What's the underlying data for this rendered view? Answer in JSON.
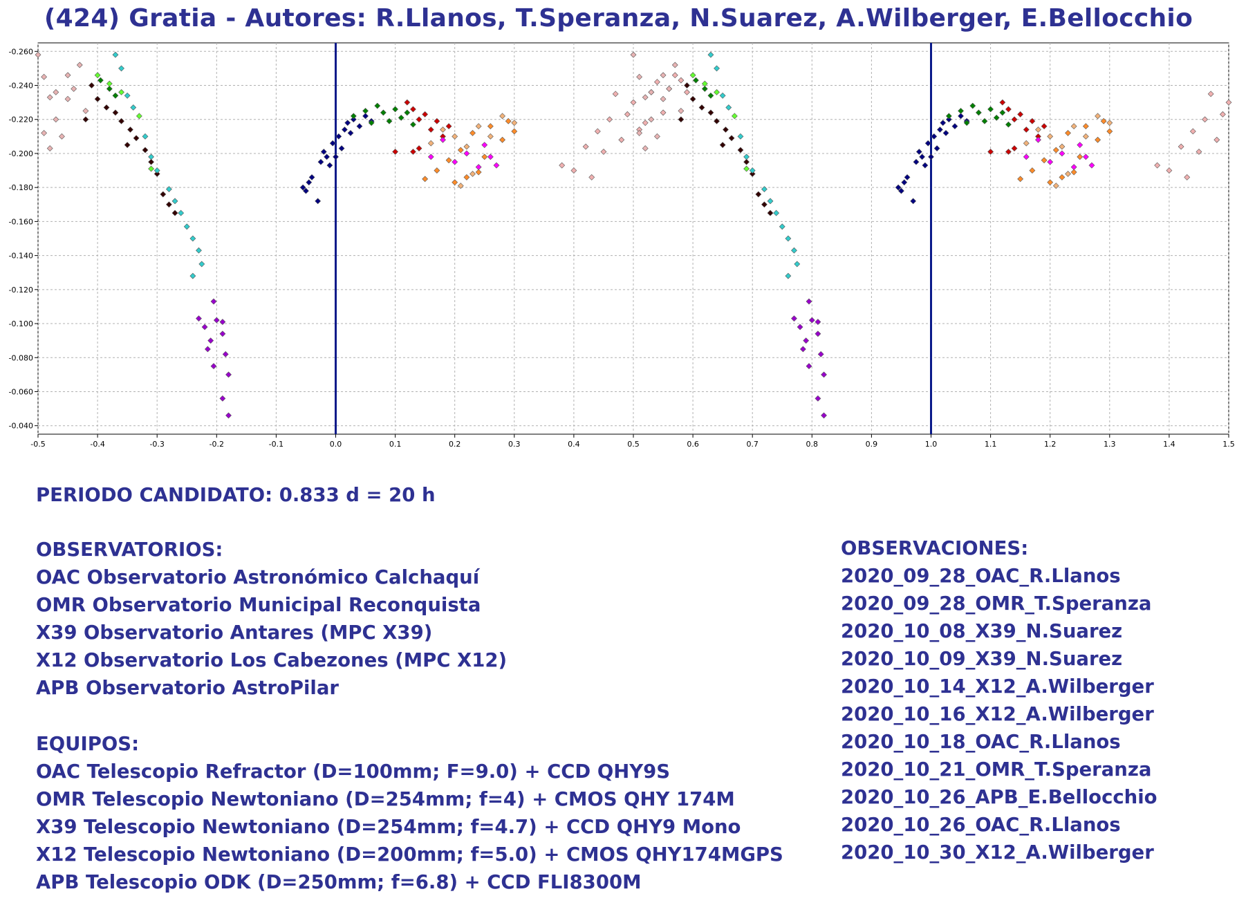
{
  "title": "(424) Gratia - Autores: R.Llanos, T.Speranza, N.Suarez, A.Wilberger, E.Bellocchio",
  "chart_data": {
    "type": "scatter",
    "title": "(424) Gratia - Autores: R.Llanos, T.Speranza, N.Suarez, A.Wilberger, E.Bellocchio",
    "xlabel": "",
    "ylabel": "",
    "xlim": [
      -0.5,
      1.5
    ],
    "ylim": [
      -0.035,
      -0.265
    ],
    "y_axis_reversed": true,
    "grid": true,
    "xticks": [
      "-0.5",
      "-0.4",
      "-0.3",
      "-0.2",
      "-0.1",
      "0.0",
      "0.1",
      "0.2",
      "0.3",
      "0.4",
      "0.5",
      "0.6",
      "0.7",
      "0.8",
      "0.9",
      "1.0",
      "1.1",
      "1.2",
      "1.3",
      "1.4",
      "1.5"
    ],
    "yticks": [
      "-0.260",
      "-0.240",
      "-0.220",
      "-0.200",
      "-0.180",
      "-0.160",
      "-0.140",
      "-0.120",
      "-0.100",
      "-0.080",
      "-0.060",
      "-0.040"
    ],
    "vertical_lines": [
      0.0,
      1.0
    ],
    "vertical_line_color": "#0a1a8a",
    "phase_repeat": 1.0,
    "series": [
      {
        "color": "#000080",
        "points": [
          [
            -0.055,
            -0.18
          ],
          [
            -0.05,
            -0.178
          ],
          [
            -0.045,
            -0.183
          ],
          [
            -0.04,
            -0.186
          ],
          [
            -0.03,
            -0.172
          ],
          [
            -0.025,
            -0.195
          ],
          [
            -0.02,
            -0.201
          ],
          [
            -0.015,
            -0.198
          ],
          [
            -0.01,
            -0.193
          ],
          [
            -0.005,
            -0.206
          ],
          [
            0.0,
            -0.198
          ],
          [
            0.005,
            -0.21
          ],
          [
            0.01,
            -0.203
          ],
          [
            0.015,
            -0.214
          ],
          [
            0.02,
            -0.218
          ],
          [
            0.025,
            -0.212
          ],
          [
            0.03,
            -0.22
          ],
          [
            0.04,
            -0.216
          ],
          [
            0.05,
            -0.222
          ],
          [
            0.06,
            -0.219
          ]
        ]
      },
      {
        "color": "#008000",
        "points": [
          [
            0.03,
            -0.222
          ],
          [
            0.05,
            -0.225
          ],
          [
            0.06,
            -0.218
          ],
          [
            0.07,
            -0.228
          ],
          [
            0.08,
            -0.224
          ],
          [
            0.09,
            -0.219
          ],
          [
            0.1,
            -0.226
          ],
          [
            0.11,
            -0.221
          ],
          [
            0.12,
            -0.224
          ],
          [
            0.13,
            -0.217
          ],
          [
            -0.395,
            -0.243
          ],
          [
            -0.38,
            -0.238
          ],
          [
            -0.37,
            -0.234
          ]
        ]
      },
      {
        "color": "#cc0000",
        "points": [
          [
            0.12,
            -0.23
          ],
          [
            0.13,
            -0.226
          ],
          [
            0.14,
            -0.22
          ],
          [
            0.15,
            -0.223
          ],
          [
            0.16,
            -0.214
          ],
          [
            0.17,
            -0.219
          ],
          [
            0.18,
            -0.21
          ],
          [
            0.19,
            -0.216
          ],
          [
            0.13,
            -0.201
          ],
          [
            0.14,
            -0.203
          ],
          [
            0.1,
            -0.201
          ]
        ]
      },
      {
        "color": "#ff00ff",
        "points": [
          [
            0.16,
            -0.198
          ],
          [
            0.18,
            -0.208
          ],
          [
            0.2,
            -0.195
          ],
          [
            0.22,
            -0.2
          ],
          [
            0.24,
            -0.192
          ],
          [
            0.25,
            -0.205
          ],
          [
            0.26,
            -0.198
          ],
          [
            0.27,
            -0.193
          ]
        ]
      },
      {
        "color": "#ff8c2a",
        "points": [
          [
            0.15,
            -0.185
          ],
          [
            0.17,
            -0.19
          ],
          [
            0.19,
            -0.196
          ],
          [
            0.2,
            -0.183
          ],
          [
            0.21,
            -0.202
          ],
          [
            0.22,
            -0.186
          ],
          [
            0.23,
            -0.212
          ],
          [
            0.24,
            -0.189
          ],
          [
            0.25,
            -0.198
          ],
          [
            0.26,
            -0.216
          ],
          [
            0.28,
            -0.208
          ],
          [
            0.29,
            -0.219
          ],
          [
            0.3,
            -0.213
          ]
        ]
      },
      {
        "color": "#f2b27a",
        "points": [
          [
            0.16,
            -0.206
          ],
          [
            0.18,
            -0.214
          ],
          [
            0.2,
            -0.21
          ],
          [
            0.22,
            -0.204
          ],
          [
            0.24,
            -0.216
          ],
          [
            0.26,
            -0.21
          ],
          [
            0.28,
            -0.222
          ],
          [
            0.3,
            -0.218
          ],
          [
            0.21,
            -0.181
          ],
          [
            0.23,
            -0.188
          ]
        ]
      },
      {
        "color": "#f0b0b0",
        "points": [
          [
            0.38,
            -0.193
          ],
          [
            0.4,
            -0.19
          ],
          [
            0.42,
            -0.204
          ],
          [
            0.44,
            -0.213
          ],
          [
            0.45,
            -0.201
          ],
          [
            0.46,
            -0.22
          ],
          [
            0.48,
            -0.208
          ],
          [
            0.49,
            -0.223
          ],
          [
            0.5,
            -0.23
          ],
          [
            0.51,
            -0.214
          ],
          [
            0.53,
            -0.236
          ],
          [
            0.54,
            -0.242
          ],
          [
            0.55,
            -0.224
          ],
          [
            0.56,
            -0.238
          ],
          [
            0.57,
            -0.246
          ],
          [
            0.58,
            -0.243
          ],
          [
            0.59,
            -0.236
          ],
          [
            0.47,
            -0.235
          ],
          [
            0.43,
            -0.186
          ],
          [
            0.52,
            -0.218
          ]
        ]
      },
      {
        "color": "#330000",
        "points": [
          [
            -0.41,
            -0.24
          ],
          [
            -0.4,
            -0.232
          ],
          [
            -0.385,
            -0.227
          ],
          [
            -0.37,
            -0.224
          ],
          [
            -0.36,
            -0.219
          ],
          [
            -0.345,
            -0.214
          ],
          [
            -0.335,
            -0.209
          ],
          [
            -0.32,
            -0.202
          ],
          [
            -0.31,
            -0.195
          ],
          [
            -0.3,
            -0.188
          ],
          [
            -0.29,
            -0.176
          ],
          [
            -0.28,
            -0.17
          ],
          [
            -0.27,
            -0.165
          ],
          [
            -0.42,
            -0.22
          ],
          [
            -0.35,
            -0.205
          ]
        ]
      },
      {
        "color": "#33cccc",
        "points": [
          [
            -0.37,
            -0.258
          ],
          [
            -0.36,
            -0.25
          ],
          [
            -0.35,
            -0.234
          ],
          [
            -0.34,
            -0.227
          ],
          [
            -0.32,
            -0.21
          ],
          [
            -0.31,
            -0.198
          ],
          [
            -0.3,
            -0.19
          ],
          [
            -0.28,
            -0.179
          ],
          [
            -0.27,
            -0.172
          ],
          [
            -0.26,
            -0.165
          ],
          [
            -0.25,
            -0.157
          ],
          [
            -0.24,
            -0.15
          ],
          [
            -0.23,
            -0.143
          ],
          [
            -0.225,
            -0.135
          ],
          [
            -0.24,
            -0.128
          ]
        ]
      },
      {
        "color": "#66ff33",
        "points": [
          [
            -0.4,
            -0.246
          ],
          [
            -0.38,
            -0.241
          ],
          [
            -0.36,
            -0.236
          ],
          [
            -0.33,
            -0.222
          ],
          [
            -0.31,
            -0.191
          ]
        ]
      },
      {
        "color": "#9900cc",
        "points": [
          [
            -0.23,
            -0.103
          ],
          [
            -0.22,
            -0.098
          ],
          [
            -0.21,
            -0.09
          ],
          [
            -0.205,
            -0.113
          ],
          [
            -0.2,
            -0.102
          ],
          [
            -0.19,
            -0.094
          ],
          [
            -0.19,
            -0.101
          ],
          [
            -0.185,
            -0.082
          ],
          [
            -0.18,
            -0.07
          ],
          [
            -0.205,
            -0.075
          ],
          [
            -0.19,
            -0.056
          ],
          [
            -0.18,
            -0.046
          ],
          [
            -0.215,
            -0.085
          ]
        ]
      },
      {
        "color": "#e8b3b3",
        "points": [
          [
            -0.5,
            -0.258
          ],
          [
            -0.49,
            -0.245
          ],
          [
            -0.48,
            -0.233
          ],
          [
            -0.47,
            -0.22
          ],
          [
            -0.46,
            -0.21
          ],
          [
            -0.45,
            -0.246
          ],
          [
            -0.44,
            -0.238
          ],
          [
            -0.43,
            -0.252
          ],
          [
            -0.42,
            -0.225
          ],
          [
            -0.47,
            -0.236
          ],
          [
            -0.49,
            -0.212
          ],
          [
            -0.48,
            -0.203
          ],
          [
            -0.45,
            -0.232
          ]
        ]
      }
    ]
  },
  "periodo": "PERIODO CANDIDATO: 0.833 d = 20 h",
  "observatorios": {
    "heading": "OBSERVATORIOS:",
    "items": [
      "OAC Observatorio Astronómico Calchaquí",
      "OMR Observatorio Municipal Reconquista",
      "X39 Observatorio Antares (MPC X39)",
      "X12 Observatorio Los Cabezones (MPC X12)",
      "APB Observatorio AstroPilar"
    ]
  },
  "equipos": {
    "heading": "EQUIPOS:",
    "items": [
      "OAC Telescopio Refractor (D=100mm; F=9.0) + CCD QHY9S",
      "OMR Telescopio Newtoniano (D=254mm; f=4) + CMOS QHY 174M",
      "X39 Telescopio Newtoniano (D=254mm; f=4.7) + CCD QHY9 Mono",
      "X12 Telescopio Newtoniano (D=200mm; f=5.0) + CMOS QHY174MGPS",
      "APB Telescopio ODK (D=250mm; f=6.8) + CCD FLI8300M"
    ]
  },
  "observaciones": {
    "heading": "OBSERVACIONES:",
    "items": [
      "2020_09_28_OAC_R.Llanos",
      "2020_09_28_OMR_T.Speranza",
      "2020_10_08_X39_N.Suarez",
      "2020_10_09_X39_N.Suarez",
      "2020_10_14_X12_A.Wilberger",
      "2020_10_16_X12_A.Wilberger",
      "2020_10_18_OAC_R.Llanos",
      "2020_10_21_OMR_T.Speranza",
      "2020_10_26_APB_E.Bellocchio",
      "2020_10_26_OAC_R.Llanos",
      "2020_10_30_X12_A.Wilberger"
    ]
  },
  "colors": {
    "text": "#2e3192",
    "grid": "#b0b0b0",
    "axis": "#000000"
  }
}
